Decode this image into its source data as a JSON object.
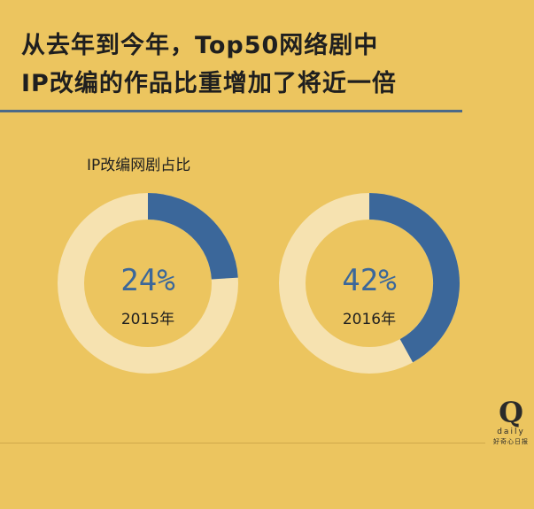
{
  "headline": {
    "line1": "从去年到今年，Top50网络剧中",
    "line2": "IP改编的作品比重增加了将近一倍"
  },
  "chart_data": {
    "type": "pie",
    "title": "IP改编网剧占比",
    "categories": [
      "2015年",
      "2016年"
    ],
    "values": [
      24,
      42
    ],
    "value_labels": [
      "24%",
      "42%"
    ],
    "colors": {
      "filled": "#3b679a",
      "remainder": "#f6e2b0",
      "value_text": "#3b679a",
      "year_text": "#1f1f1f"
    }
  },
  "logo": {
    "mark": "Q",
    "wordmark": "daily",
    "tagline": "好奇心日报"
  }
}
